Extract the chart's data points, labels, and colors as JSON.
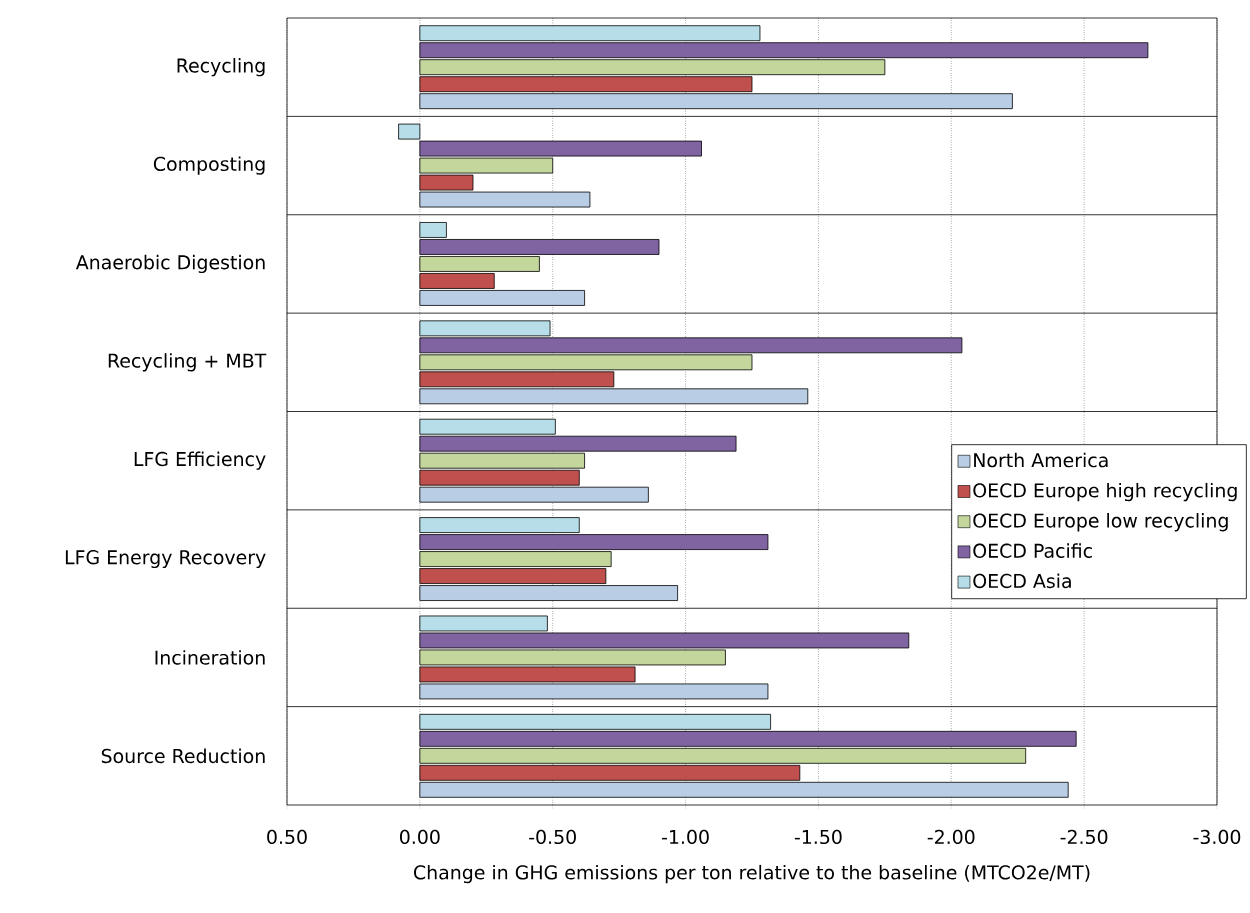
{
  "chart_data": {
    "type": "bar",
    "orientation": "horizontal",
    "xlabel": "Change in GHG emissions per ton relative to the baseline (MTCO2e/MT)",
    "categories": [
      "Recycling",
      "Composting",
      "Anaerobic Digestion",
      "Recycling + MBT",
      "LFG Efficiency",
      "LFG Energy Recovery",
      "Incineration",
      "Source Reduction"
    ],
    "series": [
      {
        "name": "North America",
        "color": "#b9cde5",
        "values": [
          -2.23,
          -0.64,
          -0.62,
          -1.46,
          -0.86,
          -0.97,
          -1.31,
          -2.44
        ]
      },
      {
        "name": "OECD Europe high recycling",
        "color": "#c0504d",
        "values": [
          -1.25,
          -0.2,
          -0.28,
          -0.73,
          -0.6,
          -0.7,
          -0.81,
          -1.43
        ]
      },
      {
        "name": "OECD Europe low recycling",
        "color": "#c3d69b",
        "values": [
          -1.75,
          -0.5,
          -0.45,
          -1.25,
          -0.62,
          -0.72,
          -1.15,
          -2.28
        ]
      },
      {
        "name": "OECD Pacific",
        "color": "#8064a2",
        "values": [
          -2.74,
          -1.06,
          -0.9,
          -2.04,
          -1.19,
          -1.31,
          -1.84,
          -2.47
        ]
      },
      {
        "name": "OECD Asia",
        "color": "#b7dee8",
        "values": [
          -1.28,
          0.08,
          -0.1,
          -0.49,
          -0.51,
          -0.6,
          -0.48,
          -1.32
        ]
      }
    ],
    "xlim": [
      0.5,
      -3.0
    ],
    "xticks": [
      {
        "value": 0.5,
        "label": "0.50"
      },
      {
        "value": 0.0,
        "label": "0.00"
      },
      {
        "value": -0.5,
        "label": "-0.50"
      },
      {
        "value": -1.0,
        "label": "-1.00"
      },
      {
        "value": -1.5,
        "label": "-1.50"
      },
      {
        "value": -2.0,
        "label": "-2.00"
      },
      {
        "value": -2.5,
        "label": "-2.50"
      },
      {
        "value": -3.0,
        "label": "-3.00"
      }
    ],
    "grid": true,
    "legend": "right"
  }
}
